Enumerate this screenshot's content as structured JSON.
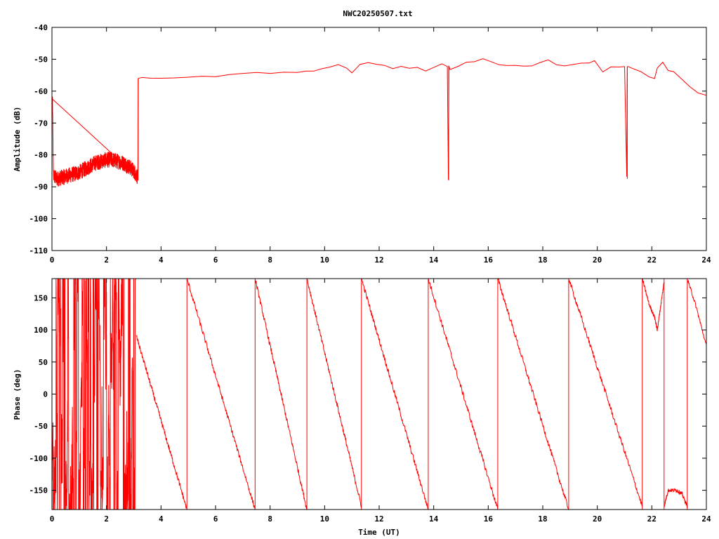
{
  "title": "NWC20250507.txt",
  "colors": {
    "trace": "#ff0000",
    "axis": "#000000",
    "background": "#ffffff"
  },
  "chart_data": [
    {
      "type": "line",
      "ylabel": "Amplitude (dB)",
      "xlabel": "",
      "xlim": [
        0,
        24
      ],
      "ylim": [
        -110,
        -40
      ],
      "xticks": [
        "0",
        "2",
        "4",
        "6",
        "8",
        "10",
        "12",
        "14",
        "16",
        "18",
        "20",
        "22",
        "24"
      ],
      "yticks": [
        "-40",
        "-50",
        "-60",
        "-70",
        "-80",
        "-90",
        "-100",
        "-110"
      ],
      "grid": false,
      "series": [
        {
          "x": [
            0,
            0.02,
            0.05,
            0.1,
            0.2,
            0.4,
            0.6,
            0.8,
            1.0,
            1.2,
            1.4,
            1.6,
            1.8,
            2.0,
            2.2,
            2.4,
            2.6,
            2.8,
            3.0,
            3.15,
            3.17,
            3.3,
            3.6,
            4.0,
            4.5,
            5.0,
            5.5,
            6.0,
            6.5,
            7.0,
            7.5,
            8.0,
            8.5,
            9.0,
            9.3,
            9.6,
            9.9,
            10.2,
            10.5,
            10.8,
            11.0,
            11.3,
            11.6,
            11.9,
            12.2,
            12.5,
            12.8,
            13.1,
            13.4,
            13.7,
            14.0,
            14.3,
            14.5,
            14.54,
            14.56,
            14.6,
            14.9,
            15.2,
            15.5,
            15.8,
            16.1,
            16.4,
            16.7,
            17.0,
            17.3,
            17.6,
            17.9,
            18.2,
            18.5,
            18.8,
            19.1,
            19.4,
            19.7,
            19.9,
            20.2,
            20.5,
            20.8,
            21.0,
            21.08,
            21.1,
            21.12,
            21.3,
            21.6,
            21.9,
            22.1,
            22.2,
            22.4,
            22.6,
            22.8,
            23.1,
            23.4,
            23.7,
            24.0
          ],
          "y": [
            -63,
            -62.5,
            -86,
            -87,
            -87.5,
            -87,
            -86.5,
            -86,
            -85.5,
            -84.5,
            -83.5,
            -82.5,
            -82,
            -81.5,
            -81.5,
            -82,
            -82.5,
            -83.5,
            -85,
            -87,
            -56,
            -56,
            -56,
            -56.2,
            -56,
            -55.8,
            -55.5,
            -55.2,
            -54.8,
            -54.3,
            -54.2,
            -54.2,
            -54.1,
            -54,
            -54,
            -53.5,
            -53,
            -52.5,
            -51.8,
            -53,
            -54.5,
            -51.5,
            -51,
            -51.5,
            -52,
            -53,
            -52.5,
            -53,
            -52.5,
            -53.5,
            -52.5,
            -51.5,
            -52,
            -88,
            -52,
            -53.5,
            -52.5,
            -51,
            -50.5,
            -50,
            -51,
            -51.5,
            -52,
            -52,
            -52.2,
            -52,
            -51,
            -50.2,
            -51.5,
            -51.8,
            -51.5,
            -51.5,
            -51,
            -50.5,
            -54,
            -52.5,
            -52.5,
            -52.3,
            -87,
            -52.5,
            -52,
            -53,
            -54,
            -55.5,
            -56,
            -53,
            -51,
            -53.5,
            -54,
            -56,
            -58.5,
            -60.5,
            -61.5
          ]
        }
      ],
      "spikes": [
        {
          "x": 14.55,
          "from": -52,
          "to": -88
        },
        {
          "x": 21.1,
          "from": -52.5,
          "to": -87.5
        }
      ],
      "noise_band": {
        "x_from": 0.02,
        "x_to": 3.15,
        "half_width_db": 2.5
      }
    },
    {
      "type": "line",
      "ylabel": "Phase (deg)",
      "xlabel": "Time (UT)",
      "xlim": [
        0,
        24
      ],
      "ylim": [
        -180,
        180
      ],
      "xticks": [
        "0",
        "2",
        "4",
        "6",
        "8",
        "10",
        "12",
        "14",
        "16",
        "18",
        "20",
        "22",
        "24"
      ],
      "yticks": [
        "150",
        "100",
        "50",
        "0",
        "-50",
        "-100",
        "-150"
      ],
      "grid": false,
      "noise_region": {
        "x_from": 0,
        "x_to": 3.1,
        "y_from": -180,
        "y_to": 180
      },
      "ramps": [
        {
          "x0": 3.1,
          "y0": 90,
          "x1": 4.95,
          "y1": -180
        },
        {
          "x0": 4.95,
          "y0": 180,
          "x1": 7.45,
          "y1": -180
        },
        {
          "x0": 7.45,
          "y0": 180,
          "x1": 9.35,
          "y1": -180
        },
        {
          "x0": 9.35,
          "y0": 180,
          "x1": 11.35,
          "y1": -175
        },
        {
          "x0": 11.35,
          "y0": 180,
          "x1": 13.8,
          "y1": -180
        },
        {
          "x0": 13.8,
          "y0": 180,
          "x1": 16.35,
          "y1": -180
        },
        {
          "x0": 16.35,
          "y0": 180,
          "x1": 18.95,
          "y1": -180
        },
        {
          "x0": 18.95,
          "y0": 180,
          "x1": 21.65,
          "y1": -175
        }
      ],
      "segments": [
        {
          "x": [
            21.65,
            21.9,
            22.1,
            22.2,
            22.3,
            22.45
          ],
          "y": [
            180,
            140,
            120,
            100,
            130,
            175
          ]
        },
        {
          "x": [
            22.45,
            22.6,
            22.9,
            23.1,
            23.3
          ],
          "y": [
            -175,
            -150,
            -150,
            -155,
            -175
          ]
        },
        {
          "x": [
            23.3,
            23.6,
            24.0
          ],
          "y": [
            180,
            140,
            75
          ]
        }
      ],
      "wrap_lines_x": [
        4.95,
        7.45,
        9.35,
        11.35,
        13.8,
        16.35,
        18.95,
        21.65,
        22.45,
        23.3
      ]
    }
  ]
}
